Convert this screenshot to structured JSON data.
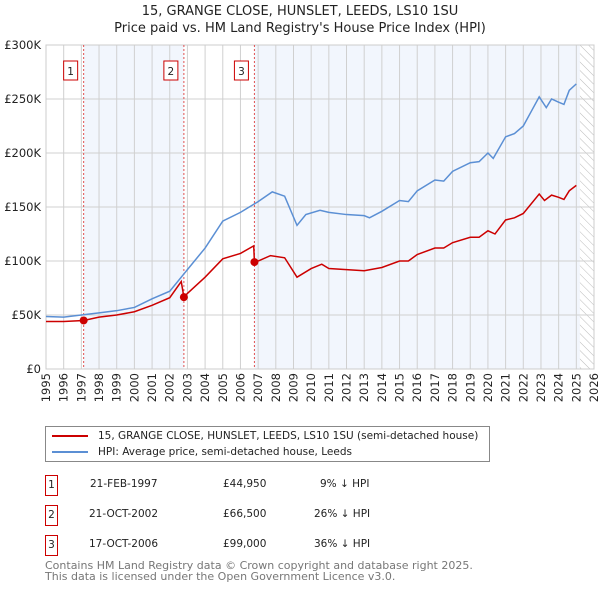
{
  "chart_data": {
    "type": "line",
    "title": "15, GRANGE CLOSE, HUNSLET, LEEDS, LS10 1SU",
    "subtitle": "Price paid vs. HM Land Registry's House Price Index (HPI)",
    "xlim": [
      1995,
      2026
    ],
    "ylim": [
      0,
      300000
    ],
    "x_ticks": [
      "1995",
      "1996",
      "1997",
      "1998",
      "1999",
      "2000",
      "2001",
      "2002",
      "2003",
      "2004",
      "2005",
      "2006",
      "2007",
      "2008",
      "2009",
      "2010",
      "2011",
      "2012",
      "2013",
      "2014",
      "2015",
      "2016",
      "2017",
      "2018",
      "2019",
      "2020",
      "2021",
      "2022",
      "2023",
      "2024",
      "2025",
      "2026"
    ],
    "y_ticks": [
      {
        "v": 0,
        "label": "£0"
      },
      {
        "v": 50000,
        "label": "£50K"
      },
      {
        "v": 100000,
        "label": "£100K"
      },
      {
        "v": 150000,
        "label": "£150K"
      },
      {
        "v": 200000,
        "label": "£200K"
      },
      {
        "v": 250000,
        "label": "£250K"
      },
      {
        "v": 300000,
        "label": "£300K"
      }
    ],
    "grid": true,
    "series": [
      {
        "name": "15, GRANGE CLOSE, HUNSLET, LEEDS, LS10 1SU (semi-detached house)",
        "color": "#cc0000",
        "points": [
          [
            1995,
            44000
          ],
          [
            1996,
            44000
          ],
          [
            1997.13,
            44950
          ],
          [
            1998,
            48000
          ],
          [
            1999,
            50000
          ],
          [
            2000,
            53000
          ],
          [
            2001,
            59000
          ],
          [
            2002,
            66000
          ],
          [
            2002.65,
            81000
          ],
          [
            2002.8,
            66500
          ],
          [
            2003,
            70000
          ],
          [
            2004,
            85000
          ],
          [
            2005,
            102000
          ],
          [
            2006,
            107000
          ],
          [
            2006.75,
            114000
          ],
          [
            2006.79,
            99000
          ],
          [
            2007,
            100000
          ],
          [
            2007.7,
            105000
          ],
          [
            2008.5,
            103000
          ],
          [
            2009.2,
            85000
          ],
          [
            2010,
            93000
          ],
          [
            2010.6,
            97000
          ],
          [
            2011,
            93000
          ],
          [
            2012,
            92000
          ],
          [
            2013,
            91000
          ],
          [
            2014,
            94000
          ],
          [
            2015,
            100000
          ],
          [
            2015.5,
            100000
          ],
          [
            2016,
            106000
          ],
          [
            2017,
            112000
          ],
          [
            2017.5,
            112000
          ],
          [
            2018,
            117000
          ],
          [
            2019,
            122000
          ],
          [
            2019.5,
            122000
          ],
          [
            2020,
            128000
          ],
          [
            2020.4,
            125000
          ],
          [
            2021,
            138000
          ],
          [
            2021.5,
            140000
          ],
          [
            2022,
            144000
          ],
          [
            2022.9,
            162000
          ],
          [
            2023.2,
            156000
          ],
          [
            2023.6,
            161000
          ],
          [
            2024,
            159000
          ],
          [
            2024.3,
            157000
          ],
          [
            2024.6,
            165000
          ],
          [
            2025,
            170000
          ]
        ]
      },
      {
        "name": "HPI: Average price, semi-detached house, Leeds",
        "color": "#5b8fd4",
        "points": [
          [
            1995,
            48600
          ],
          [
            1996,
            48000
          ],
          [
            1997,
            50000
          ],
          [
            1998,
            52000
          ],
          [
            1999,
            54000
          ],
          [
            2000,
            57000
          ],
          [
            2001,
            65000
          ],
          [
            2002,
            72000
          ],
          [
            2002.8,
            88000
          ],
          [
            2003,
            92000
          ],
          [
            2004,
            112000
          ],
          [
            2005,
            137000
          ],
          [
            2006,
            145000
          ],
          [
            2007,
            155000
          ],
          [
            2007.8,
            164000
          ],
          [
            2008.5,
            160000
          ],
          [
            2009.2,
            133000
          ],
          [
            2009.7,
            143000
          ],
          [
            2010.5,
            147000
          ],
          [
            2011,
            145000
          ],
          [
            2012,
            143000
          ],
          [
            2013,
            142000
          ],
          [
            2013.3,
            140000
          ],
          [
            2014,
            146000
          ],
          [
            2015,
            156000
          ],
          [
            2015.5,
            155000
          ],
          [
            2016,
            165000
          ],
          [
            2017,
            175000
          ],
          [
            2017.5,
            174000
          ],
          [
            2018,
            183000
          ],
          [
            2019,
            191000
          ],
          [
            2019.5,
            192000
          ],
          [
            2020,
            200000
          ],
          [
            2020.3,
            195000
          ],
          [
            2021,
            215000
          ],
          [
            2021.5,
            218000
          ],
          [
            2022,
            225000
          ],
          [
            2022.5,
            240000
          ],
          [
            2022.9,
            252000
          ],
          [
            2023.3,
            242000
          ],
          [
            2023.6,
            250000
          ],
          [
            2024,
            247000
          ],
          [
            2024.3,
            245000
          ],
          [
            2024.6,
            258000
          ],
          [
            2025,
            264000
          ]
        ]
      }
    ],
    "sales": [
      {
        "label": "1",
        "x": 1997.13,
        "y": 44950
      },
      {
        "label": "2",
        "x": 2002.8,
        "y": 66500
      },
      {
        "label": "3",
        "x": 2006.79,
        "y": 99000
      }
    ],
    "shaded_ranges": [
      [
        1997.13,
        2002.8
      ],
      [
        2006.79,
        2025.2
      ]
    ],
    "hatched_from": 2025.2,
    "legend_placement": "bottom"
  },
  "legend": {
    "items": [
      "15, GRANGE CLOSE, HUNSLET, LEEDS, LS10 1SU (semi-detached house)",
      "HPI: Average price, semi-detached house, Leeds"
    ]
  },
  "table": [
    {
      "num": "1",
      "date": "21-FEB-1997",
      "price": "£44,950",
      "hpi": "9% ↓ HPI"
    },
    {
      "num": "2",
      "date": "21-OCT-2002",
      "price": "£66,500",
      "hpi": "26% ↓ HPI"
    },
    {
      "num": "3",
      "date": "17-OCT-2006",
      "price": "£99,000",
      "hpi": "36% ↓ HPI"
    }
  ],
  "footer": {
    "line1": "Contains HM Land Registry data © Crown copyright and database right 2025.",
    "line2": "This data is licensed under the Open Government Licence v3.0."
  }
}
